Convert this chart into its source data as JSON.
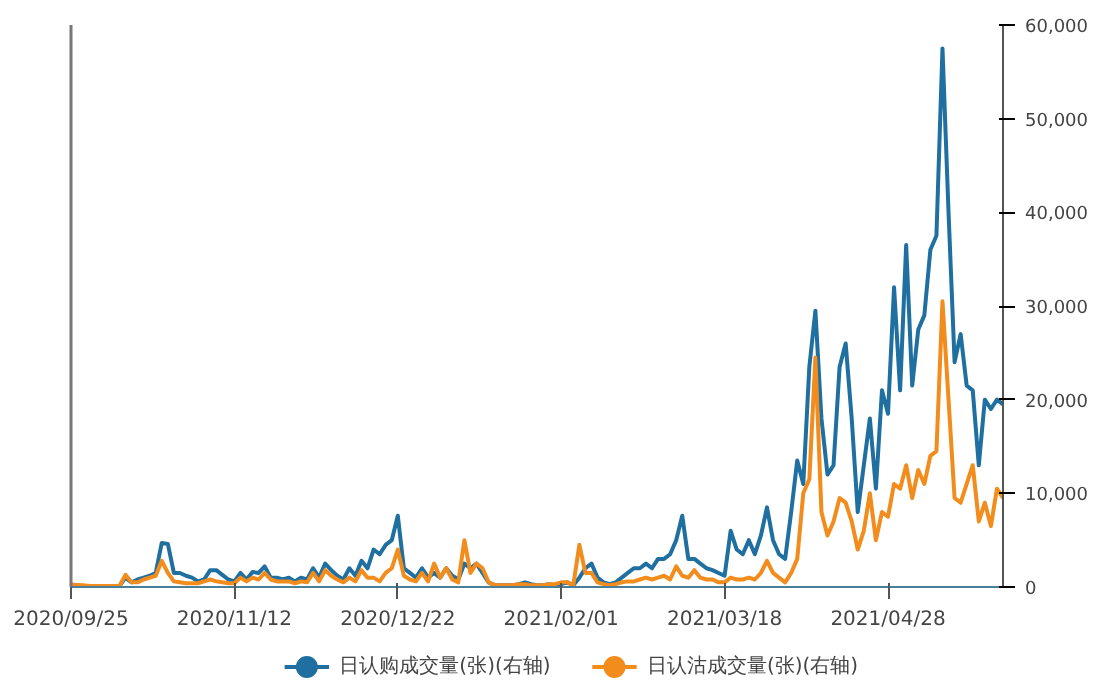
{
  "chart_data": {
    "type": "line",
    "categories": [
      "2020/09/25",
      null,
      null,
      null,
      null,
      null,
      null,
      null,
      null,
      null,
      null,
      null,
      null,
      null,
      null,
      null,
      null,
      null,
      null,
      null,
      null,
      null,
      null,
      null,
      null,
      null,
      null,
      "2020/11/12",
      null,
      null,
      null,
      null,
      null,
      null,
      null,
      null,
      null,
      null,
      null,
      null,
      null,
      null,
      null,
      null,
      null,
      null,
      null,
      null,
      null,
      null,
      null,
      null,
      null,
      null,
      "2020/12/22",
      null,
      null,
      null,
      null,
      null,
      null,
      null,
      null,
      null,
      null,
      null,
      null,
      null,
      null,
      null,
      null,
      null,
      null,
      null,
      null,
      null,
      null,
      null,
      null,
      null,
      null,
      "2021/02/01",
      null,
      null,
      null,
      null,
      null,
      null,
      null,
      null,
      null,
      null,
      null,
      null,
      null,
      null,
      null,
      null,
      null,
      null,
      null,
      null,
      null,
      null,
      null,
      null,
      null,
      null,
      "2021/03/18",
      null,
      null,
      null,
      null,
      null,
      null,
      null,
      null,
      null,
      null,
      null,
      null,
      null,
      null,
      null,
      null,
      null,
      null,
      null,
      null,
      null,
      null,
      null,
      null,
      null,
      null,
      "2021/04/28",
      null,
      null,
      null,
      null,
      null,
      null,
      null,
      null,
      null,
      null,
      null,
      null,
      null,
      null,
      null,
      null,
      null,
      null,
      null
    ],
    "series": [
      {
        "name": "日认购成交量(张)(右轴)",
        "color": "#1f6fa0",
        "axis": "y2",
        "values": [
          200,
          200,
          100,
          100,
          100,
          100,
          100,
          100,
          100,
          1000,
          500,
          800,
          1000,
          1200,
          1500,
          4700,
          4600,
          1500,
          1500,
          1200,
          1000,
          600,
          800,
          1800,
          1800,
          1300,
          800,
          600,
          1500,
          800,
          1600,
          1500,
          2200,
          1000,
          1000,
          800,
          1000,
          600,
          1000,
          800,
          2000,
          1000,
          2500,
          1800,
          1200,
          800,
          2000,
          1200,
          2800,
          2000,
          4000,
          3500,
          4500,
          5000,
          7600,
          2000,
          1500,
          1000,
          2000,
          1000,
          1500,
          1000,
          2000,
          1200,
          800,
          2500,
          2000,
          2500,
          1500,
          500,
          200,
          200,
          200,
          200,
          300,
          500,
          300,
          200,
          200,
          300,
          200,
          300,
          500,
          200,
          1000,
          2000,
          2500,
          1000,
          500,
          300,
          500,
          1000,
          1500,
          2000,
          2000,
          2500,
          2000,
          3000,
          3000,
          3500,
          5000,
          7600,
          3000,
          3000,
          2500,
          2000,
          1800,
          1500,
          1200,
          6000,
          4000,
          3500,
          5000,
          3500,
          5500,
          8500,
          5000,
          3500,
          3000,
          8000,
          13500,
          11000,
          23500,
          29500,
          18000,
          12000,
          13000,
          23500,
          26000,
          18000,
          8000,
          13000,
          18000,
          10500,
          21000,
          18500,
          32000,
          21000,
          36500,
          21500,
          27500,
          29000,
          36000,
          37500,
          57500,
          40000,
          24000,
          27000,
          21500,
          21000,
          13000,
          20000,
          19000,
          20000,
          19500
        ]
      },
      {
        "name": "日认沽成交量(张)(右轴)",
        "color": "#f28c1c",
        "axis": "y2",
        "values": [
          300,
          200,
          200,
          100,
          100,
          100,
          100,
          100,
          100,
          1300,
          500,
          500,
          800,
          1000,
          1200,
          2800,
          1500,
          600,
          500,
          400,
          400,
          400,
          600,
          800,
          600,
          500,
          400,
          400,
          1000,
          600,
          1000,
          800,
          1500,
          800,
          600,
          600,
          600,
          400,
          600,
          500,
          1500,
          600,
          1800,
          1200,
          800,
          500,
          1000,
          600,
          1800,
          1000,
          1000,
          600,
          1500,
          2000,
          4000,
          1200,
          800,
          600,
          1500,
          600,
          2500,
          1000,
          2000,
          800,
          500,
          5000,
          1500,
          2500,
          2000,
          500,
          200,
          200,
          200,
          200,
          300,
          300,
          200,
          200,
          200,
          300,
          300,
          500,
          500,
          200,
          4500,
          1500,
          1500,
          500,
          300,
          200,
          300,
          500,
          600,
          600,
          800,
          1000,
          800,
          1000,
          1200,
          800,
          2200,
          1200,
          1000,
          1800,
          1000,
          800,
          800,
          500,
          500,
          1000,
          800,
          800,
          1000,
          800,
          1500,
          2800,
          1500,
          1000,
          500,
          1500,
          3000,
          10000,
          11500,
          24500,
          8000,
          5500,
          7000,
          9500,
          9000,
          7000,
          4000,
          6000,
          10000,
          5000,
          8000,
          7500,
          11000,
          10500,
          13000,
          9500,
          12500,
          11000,
          14000,
          14500,
          30500,
          20000,
          9500,
          9000,
          11000,
          13000,
          7000,
          9000,
          6500,
          10500,
          9500
        ]
      }
    ],
    "y2lim": [
      0,
      60000
    ],
    "y2ticks": [
      0,
      {
        "value": 10000,
        "label": "10,000"
      },
      {
        "value": 20000,
        "label": "20,000"
      },
      {
        "value": 30000,
        "label": "30,000"
      },
      {
        "value": 40000,
        "label": "40,000"
      },
      {
        "value": 50000,
        "label": "50,000"
      },
      {
        "value": 60000,
        "label": "60,000"
      }
    ],
    "grid": false,
    "legend": "bottom"
  }
}
